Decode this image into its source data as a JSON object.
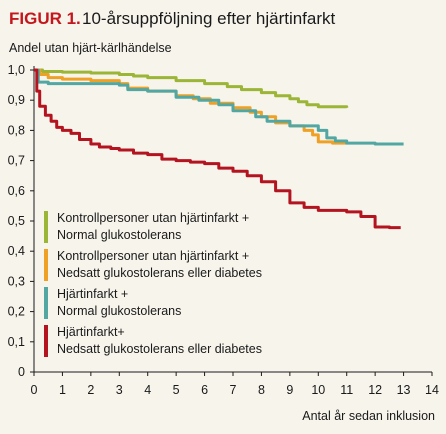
{
  "figure": {
    "label": "FIGUR 1.",
    "title": "10-årsuppföljning efter hjärtinfarkt"
  },
  "chart_data": {
    "type": "line",
    "ylabel": "Andel utan hjärt-kärlhändelse",
    "xlabel": "Antal år sedan inklusion",
    "xlim": [
      0,
      14
    ],
    "ylim": [
      0,
      1.0
    ],
    "x_ticks": [
      "0",
      "1",
      "2",
      "3",
      "4",
      "5",
      "6",
      "7",
      "8",
      "9",
      "10",
      "11",
      "12",
      "13",
      "14"
    ],
    "y_ticks": [
      "0",
      "0,1",
      "0,2",
      "0,3",
      "0,4",
      "0,5",
      "0,6",
      "0,7",
      "0,8",
      "0,9",
      "1,0"
    ],
    "grid": false,
    "legend_position": "lower-left",
    "series": [
      {
        "label_lines": [
          "Kontrollpersoner utan hjärtinfarkt +",
          "Normal glukostolerans"
        ],
        "color": "#9bb537",
        "points": [
          [
            0,
            1.0
          ],
          [
            0.3,
            0.995
          ],
          [
            1,
            0.993
          ],
          [
            2,
            0.99
          ],
          [
            3,
            0.985
          ],
          [
            3.5,
            0.98
          ],
          [
            4,
            0.975
          ],
          [
            5,
            0.965
          ],
          [
            6,
            0.955
          ],
          [
            6.8,
            0.945
          ],
          [
            7.3,
            0.935
          ],
          [
            8,
            0.925
          ],
          [
            8.5,
            0.915
          ],
          [
            9,
            0.905
          ],
          [
            9.3,
            0.895
          ],
          [
            9.6,
            0.885
          ],
          [
            10,
            0.878
          ],
          [
            11,
            0.875
          ]
        ]
      },
      {
        "label_lines": [
          "Kontrollpersoner utan hjärtinfarkt +",
          "Nedsatt glukostolerans eller diabetes"
        ],
        "color": "#eea125",
        "points": [
          [
            0,
            1.0
          ],
          [
            0.2,
            0.985
          ],
          [
            0.5,
            0.975
          ],
          [
            1,
            0.97
          ],
          [
            2,
            0.965
          ],
          [
            3,
            0.955
          ],
          [
            3.3,
            0.94
          ],
          [
            4,
            0.93
          ],
          [
            5,
            0.915
          ],
          [
            5.6,
            0.905
          ],
          [
            6.2,
            0.89
          ],
          [
            7,
            0.875
          ],
          [
            7.6,
            0.86
          ],
          [
            8,
            0.845
          ],
          [
            8.5,
            0.825
          ],
          [
            9,
            0.815
          ],
          [
            9.5,
            0.8
          ],
          [
            9.8,
            0.785
          ],
          [
            10,
            0.762
          ],
          [
            10.5,
            0.758
          ],
          [
            11,
            0.755
          ]
        ]
      },
      {
        "label_lines": [
          "Hjärtinfarkt +",
          "Normal glukostolerans"
        ],
        "color": "#52a7a3",
        "points": [
          [
            0,
            1.0
          ],
          [
            0.15,
            0.96
          ],
          [
            0.5,
            0.955
          ],
          [
            1,
            0.955
          ],
          [
            2,
            0.955
          ],
          [
            3,
            0.95
          ],
          [
            3.3,
            0.935
          ],
          [
            4,
            0.93
          ],
          [
            5,
            0.91
          ],
          [
            5.8,
            0.9
          ],
          [
            6.5,
            0.885
          ],
          [
            7,
            0.865
          ],
          [
            7.8,
            0.845
          ],
          [
            8.2,
            0.83
          ],
          [
            9,
            0.815
          ],
          [
            10,
            0.8
          ],
          [
            10.3,
            0.775
          ],
          [
            10.6,
            0.765
          ],
          [
            11,
            0.758
          ],
          [
            12,
            0.755
          ],
          [
            13,
            0.755
          ]
        ]
      },
      {
        "label_lines": [
          "Hjärtinfarkt+",
          "Nedsatt glukostolerans eller diabetes"
        ],
        "color": "#b41420",
        "points": [
          [
            0,
            1.0
          ],
          [
            0.1,
            0.93
          ],
          [
            0.2,
            0.88
          ],
          [
            0.4,
            0.85
          ],
          [
            0.6,
            0.83
          ],
          [
            0.8,
            0.81
          ],
          [
            1,
            0.8
          ],
          [
            1.3,
            0.79
          ],
          [
            1.6,
            0.77
          ],
          [
            2,
            0.755
          ],
          [
            2.3,
            0.745
          ],
          [
            2.7,
            0.74
          ],
          [
            3,
            0.735
          ],
          [
            3.5,
            0.725
          ],
          [
            4,
            0.72
          ],
          [
            4.5,
            0.705
          ],
          [
            5,
            0.7
          ],
          [
            5.5,
            0.695
          ],
          [
            6,
            0.69
          ],
          [
            6.5,
            0.675
          ],
          [
            7,
            0.665
          ],
          [
            7.5,
            0.65
          ],
          [
            8,
            0.63
          ],
          [
            8.5,
            0.6
          ],
          [
            9,
            0.56
          ],
          [
            9.5,
            0.545
          ],
          [
            10,
            0.535
          ],
          [
            11,
            0.53
          ],
          [
            11.5,
            0.515
          ],
          [
            12,
            0.48
          ],
          [
            12.5,
            0.478
          ],
          [
            12.9,
            0.478
          ]
        ]
      }
    ]
  }
}
